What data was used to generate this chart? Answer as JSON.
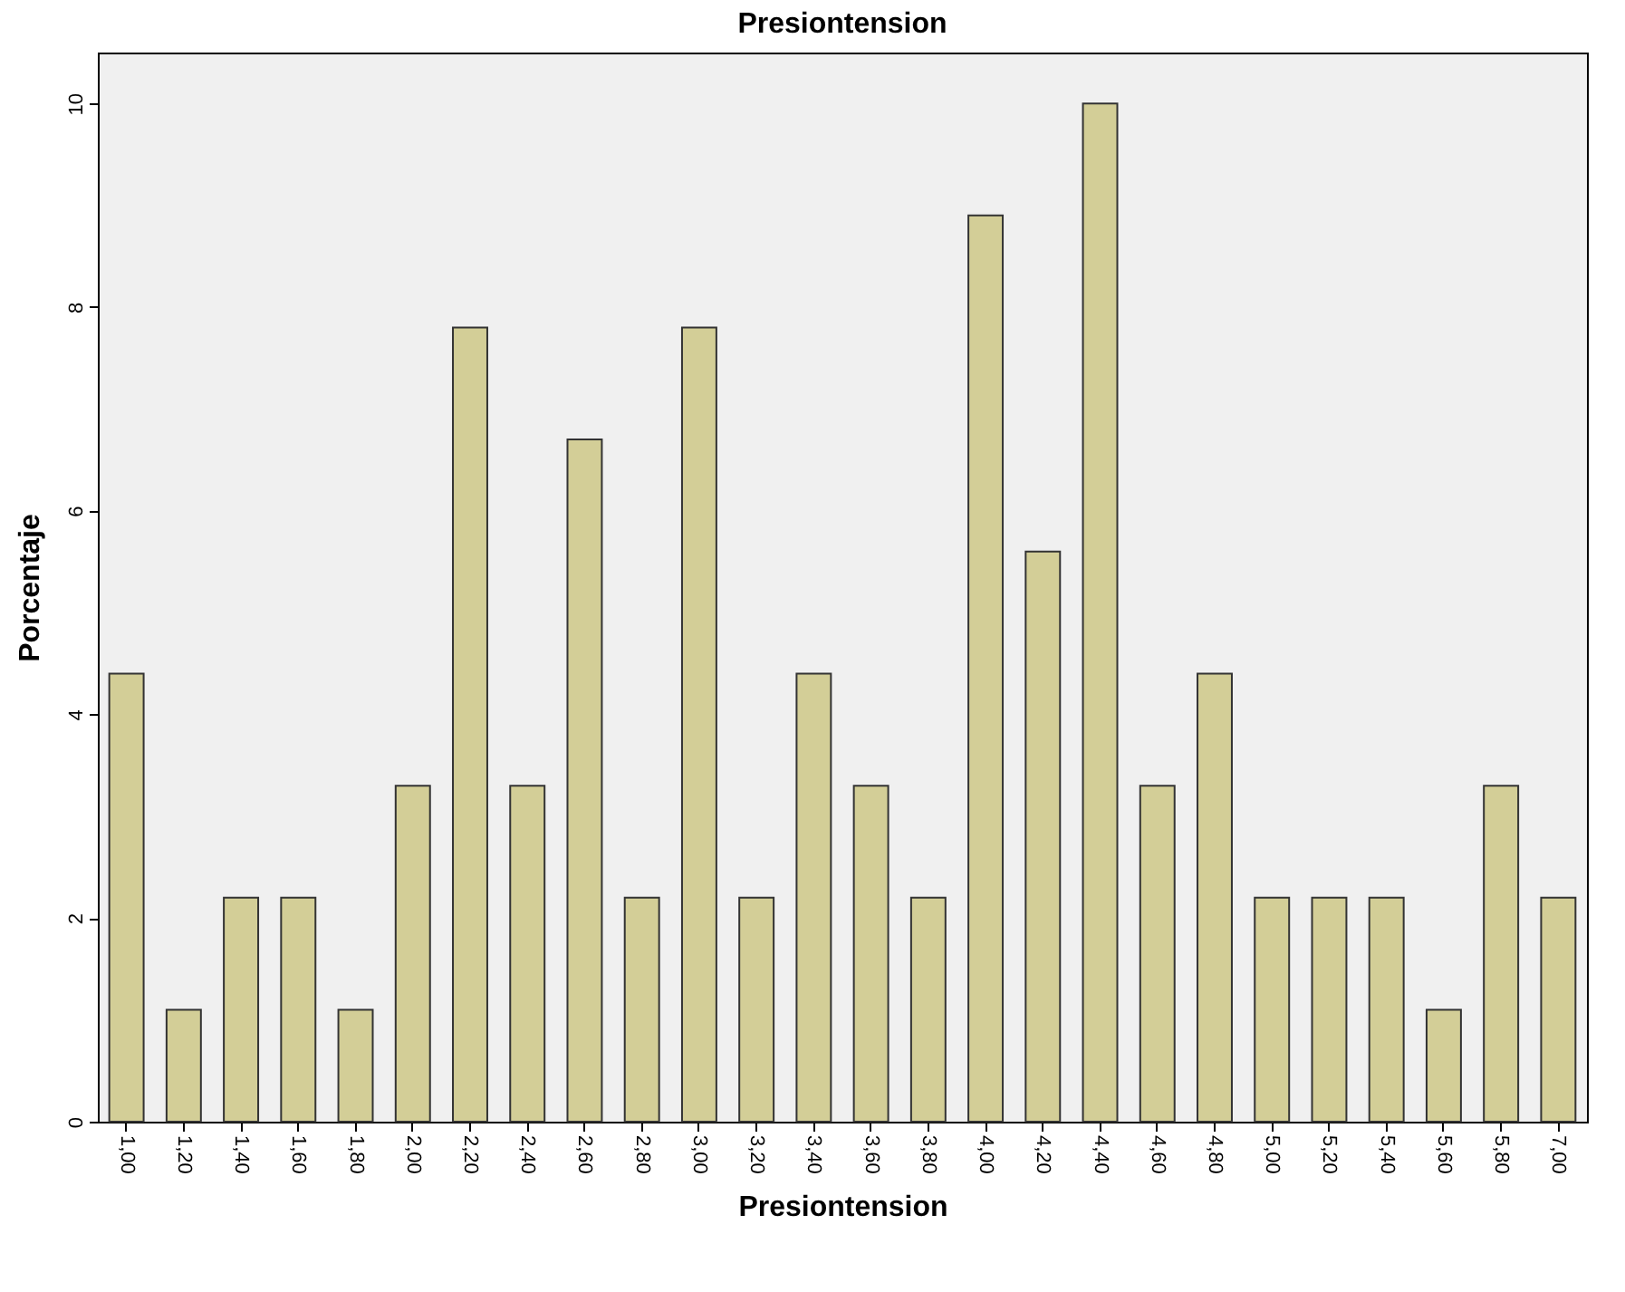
{
  "chart_data": {
    "type": "bar",
    "title": "Presiontension",
    "xlabel": "Presiontension",
    "ylabel": "Porcentaje",
    "categories": [
      "1,00",
      "1,20",
      "1,40",
      "1,60",
      "1,80",
      "2,00",
      "2,20",
      "2,40",
      "2,60",
      "2,80",
      "3,00",
      "3,20",
      "3,40",
      "3,60",
      "3,80",
      "4,00",
      "4,20",
      "4,40",
      "4,60",
      "4,80",
      "5,00",
      "5,20",
      "5,40",
      "5,60",
      "5,80",
      "7,00"
    ],
    "values": [
      4.4,
      1.1,
      2.2,
      2.2,
      1.1,
      3.3,
      7.8,
      3.3,
      6.7,
      2.2,
      7.8,
      2.2,
      4.4,
      3.3,
      2.2,
      8.9,
      5.6,
      10,
      3.3,
      4.4,
      2.2,
      2.2,
      2.2,
      1.1,
      3.3,
      2.2
    ],
    "color": "#d3ce97",
    "ylim": [
      0,
      10.5
    ],
    "yticks": [
      0,
      2,
      4,
      6,
      8,
      10
    ],
    "grid": false
  }
}
